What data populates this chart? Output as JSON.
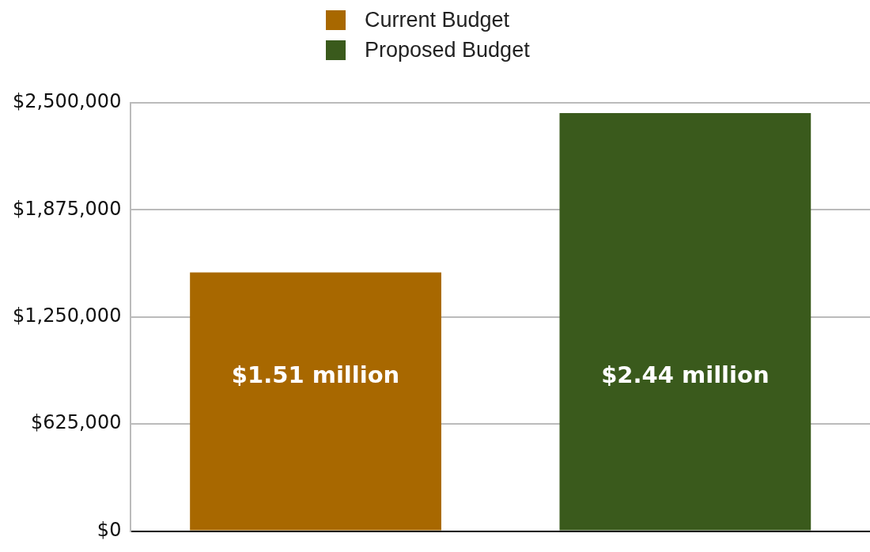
{
  "chart_data": {
    "type": "bar",
    "categories": [
      null
    ],
    "series": [
      {
        "name": "Current Budget",
        "color": "#a86800",
        "values": [
          1510000
        ],
        "value_labels": [
          "$1.51 million"
        ]
      },
      {
        "name": "Proposed Budget",
        "color": "#3a5a1c",
        "values": [
          2440000
        ],
        "value_labels": [
          "$2.44 million"
        ]
      }
    ],
    "ylim": [
      0,
      2500000
    ],
    "yticks": [
      {
        "value": 0,
        "label": "$0"
      },
      {
        "value": 625000,
        "label": "$625,000"
      },
      {
        "value": 1250000,
        "label": "$1,250,000"
      },
      {
        "value": 1875000,
        "label": "$1,875,000"
      },
      {
        "value": 2500000,
        "label": "$2,500,000"
      }
    ],
    "grid": "y",
    "legend": "top"
  }
}
